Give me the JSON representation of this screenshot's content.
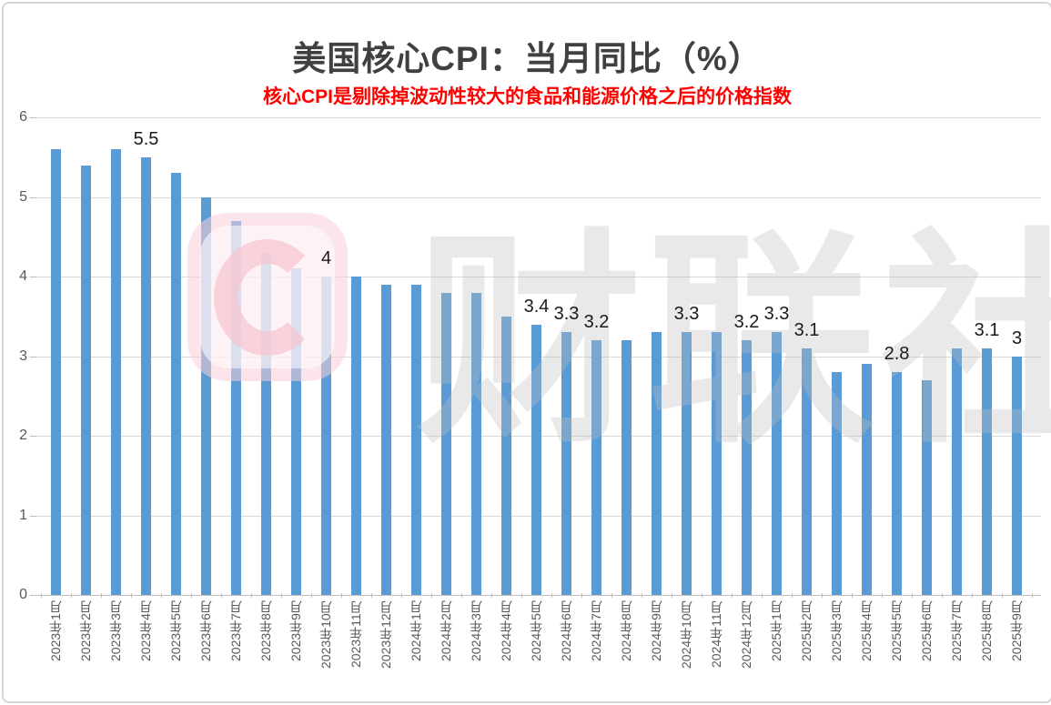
{
  "header": {
    "title": "美国核心CPI：当月同比（%）",
    "subtitle": "核心CPI是剔除掉波动性较大的食品和能源价格之后的价格指数"
  },
  "watermark": {
    "text": "财联社",
    "logo": "cailianshe-c-logo"
  },
  "colors": {
    "bar": "#5b9bd5",
    "title": "#404040",
    "subtitle": "#ff0000",
    "gridline": "#d9d9d9",
    "axis_line": "#bfbfbf",
    "tick_label": "#595959",
    "data_label": "#1a1a1a",
    "watermark_pink": "#f7d0d9",
    "watermark_gray": "#ececec",
    "border": "#d5d5d5"
  },
  "chart_data": {
    "type": "bar",
    "title": "美国核心CPI：当月同比（%）",
    "subtitle": "核心CPI是剔除掉波动性较大的食品和能源价格之后的价格指数",
    "xlabel": "",
    "ylabel": "",
    "ylim": [
      0,
      6
    ],
    "yticks": [
      "0",
      "1",
      "2",
      "3",
      "4",
      "5",
      "6"
    ],
    "grid": true,
    "legend": false,
    "categories": [
      "2023年1月",
      "2023年2月",
      "2023年3月",
      "2023年4月",
      "2023年5月",
      "2023年6月",
      "2023年7月",
      "2023年8月",
      "2023年9月",
      "2023年10月",
      "2023年11月",
      "2023年12月",
      "2024年1月",
      "2024年2月",
      "2024年3月",
      "2024年4月",
      "2024年5月",
      "2024年6月",
      "2024年7月",
      "2024年8月",
      "2024年9月",
      "2024年10月",
      "2024年11月",
      "2024年12月",
      "2025年1月",
      "2025年2月",
      "2025年3月",
      "2025年4月",
      "2025年5月",
      "2025年6月",
      "2025年7月",
      "2025年8月",
      "2025年9月"
    ],
    "values": [
      5.6,
      5.4,
      5.6,
      5.5,
      5.3,
      5.0,
      4.7,
      4.3,
      4.1,
      4.0,
      4.0,
      3.9,
      3.9,
      3.8,
      3.8,
      3.5,
      3.4,
      3.3,
      3.2,
      3.2,
      3.3,
      3.3,
      3.3,
      3.2,
      3.3,
      3.1,
      2.8,
      2.9,
      2.8,
      2.7,
      3.1,
      3.1,
      3.0
    ],
    "data_labels": [
      {
        "index": 3,
        "text": "5.5"
      },
      {
        "index": 9,
        "text": "4"
      },
      {
        "index": 16,
        "text": "3.4"
      },
      {
        "index": 17,
        "text": "3.3"
      },
      {
        "index": 18,
        "text": "3.2"
      },
      {
        "index": 21,
        "text": "3.3"
      },
      {
        "index": 23,
        "text": "3.2"
      },
      {
        "index": 24,
        "text": "3.3"
      },
      {
        "index": 25,
        "text": "3.1"
      },
      {
        "index": 28,
        "text": "2.8"
      },
      {
        "index": 31,
        "text": "3.1"
      },
      {
        "index": 32,
        "text": "3"
      }
    ]
  }
}
